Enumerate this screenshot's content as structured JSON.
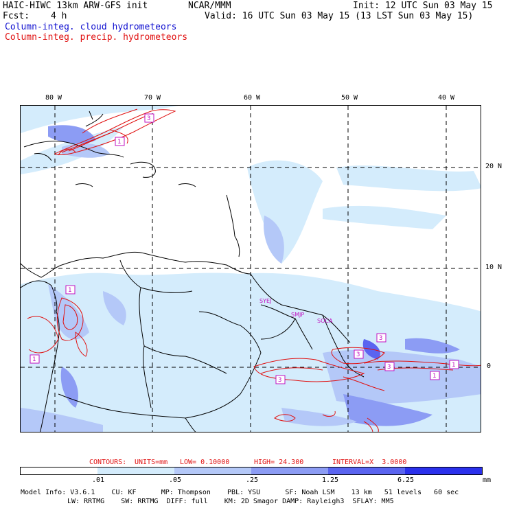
{
  "header": {
    "title": "HAIC-HIWC 13km ARW-GFS init",
    "org": "NCAR/MMM",
    "init": "Init: 12 UTC Sun 03 May 15",
    "fcst_label": "Fcst:",
    "fcst_value": "4 h",
    "valid": "Valid: 16 UTC Sun 03 May 15 (13 LST Sun 03 May 15)",
    "field1": "Column-integ. cloud hydrometeors",
    "field2": "Column-integ. precip. hydrometeors"
  },
  "map": {
    "lon_labels": [
      "80 W",
      "70 W",
      "60 W",
      "50 W",
      "40 W"
    ],
    "lat_labels": [
      "20 N",
      "10 N",
      "0"
    ],
    "stations": [
      "SYEJ",
      "SMJP",
      "SOCA"
    ],
    "contour_labels": [
      "3",
      "1",
      "1",
      "1",
      "3",
      "3",
      "1",
      "3",
      "1",
      "1",
      "3"
    ]
  },
  "contours_info": {
    "label": "CONTOURS:",
    "units": "UNITS=mm",
    "low": "LOW= 0.10000",
    "high": "HIGH= 24.300",
    "interval": "INTERVAL=X  3.0000"
  },
  "colorbar": {
    "ticks": [
      ".01",
      ".05",
      ".25",
      "1.25",
      "6.25"
    ],
    "unit": "mm",
    "colors": [
      "#ffffff",
      "#d4ecfc",
      "#b4c8f8",
      "#8c9cf4",
      "#5a64f0",
      "#2a30ec"
    ]
  },
  "model_info": {
    "line1": "Model Info: V3.6.1    CU: KF      MP: Thompson    PBL: YSU      SF: Noah LSM    13 km   51 levels   60 sec",
    "line2": "LW: RRTMG    SW: RRTMG  DIFF: full    KM: 2D Smagor DAMP: Rayleigh3  SFLAY: MM5"
  }
}
